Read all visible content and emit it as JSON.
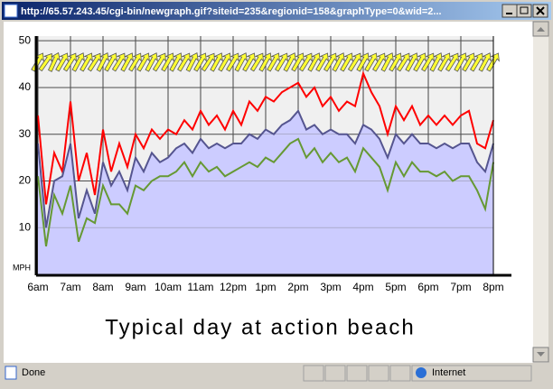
{
  "window": {
    "title": "http://65.57.243.45/cgi-bin/newgraph.gif?siteid=235&regionid=158&graphType=0&wid=2..."
  },
  "chart_data": {
    "type": "line",
    "caption": "Typical day at action beach",
    "y_label": "MPH",
    "x": [
      6,
      6.25,
      6.5,
      6.75,
      7,
      7.25,
      7.5,
      7.75,
      8,
      8.25,
      8.5,
      8.75,
      9,
      9.25,
      9.5,
      9.75,
      10,
      10.25,
      10.5,
      10.75,
      11,
      11.25,
      11.5,
      11.75,
      12,
      12.25,
      12.5,
      12.75,
      13,
      13.25,
      13.5,
      13.75,
      14,
      14.25,
      14.5,
      14.75,
      15,
      15.25,
      15.5,
      15.75,
      16,
      16.25,
      16.5,
      16.75,
      17,
      17.25,
      17.5,
      17.75,
      18,
      18.25,
      18.5,
      18.75,
      19,
      19.25,
      19.5,
      19.75,
      20
    ],
    "series": [
      {
        "color": "#ff0000",
        "values": [
          34,
          15,
          26,
          22,
          37,
          20,
          26,
          17,
          31,
          22,
          28,
          23,
          30,
          27,
          31,
          29,
          31,
          30,
          33,
          31,
          35,
          32,
          34,
          31,
          35,
          32,
          37,
          35,
          38,
          37,
          39,
          40,
          41,
          38,
          40,
          36,
          38,
          35,
          37,
          36,
          43,
          39,
          36,
          30,
          36,
          33,
          36,
          32,
          34,
          32,
          34,
          32,
          34,
          35,
          28,
          27,
          33
        ]
      },
      {
        "color": "#55558f",
        "fill": "#ccccff",
        "values": [
          28,
          10,
          20,
          21,
          28,
          12,
          18,
          13,
          24,
          19,
          22,
          18,
          25,
          22,
          26,
          24,
          25,
          27,
          28,
          26,
          29,
          27,
          28,
          27,
          28,
          28,
          30,
          29,
          31,
          30,
          32,
          33,
          35,
          31,
          32,
          30,
          31,
          30,
          30,
          28,
          32,
          31,
          29,
          25,
          30,
          28,
          30,
          28,
          28,
          27,
          28,
          27,
          28,
          28,
          24,
          22,
          28
        ]
      },
      {
        "color": "#669933",
        "values": [
          21,
          6,
          17,
          13,
          19,
          7,
          12,
          11,
          19,
          15,
          15,
          13,
          19,
          18,
          20,
          21,
          21,
          22,
          24,
          21,
          24,
          22,
          23,
          21,
          22,
          23,
          24,
          23,
          25,
          24,
          26,
          28,
          29,
          25,
          27,
          24,
          26,
          24,
          25,
          22,
          27,
          25,
          23,
          18,
          24,
          21,
          24,
          22,
          22,
          21,
          22,
          20,
          21,
          21,
          18,
          14,
          24
        ]
      }
    ],
    "direction": [
      60,
      55,
      65,
      60,
      58,
      62,
      60,
      57,
      63,
      60,
      58,
      61,
      59,
      60,
      62,
      58,
      60,
      61,
      59,
      63,
      60,
      57,
      61,
      60,
      59,
      62,
      60,
      58,
      61,
      60,
      59,
      62,
      60,
      58,
      61,
      60,
      59,
      62,
      60,
      58,
      61,
      60,
      59,
      62,
      60,
      58,
      61,
      60,
      59,
      62,
      60,
      58,
      61,
      60,
      59,
      62,
      60
    ],
    "direction_level": 45.5,
    "xlim": [
      6,
      20
    ],
    "ylim": [
      0,
      51
    ],
    "yticks": [
      10,
      20,
      30,
      40,
      50
    ],
    "xticks": [
      {
        "value": 6,
        "label": "6am"
      },
      {
        "value": 7,
        "label": "7am"
      },
      {
        "value": 8,
        "label": "8am"
      },
      {
        "value": 9,
        "label": "9am"
      },
      {
        "value": 10,
        "label": "10am"
      },
      {
        "value": 11,
        "label": "11am"
      },
      {
        "value": 12,
        "label": "12pm"
      },
      {
        "value": 13,
        "label": "1pm"
      },
      {
        "value": 14,
        "label": "2pm"
      },
      {
        "value": 15,
        "label": "3pm"
      },
      {
        "value": 16,
        "label": "4pm"
      },
      {
        "value": 17,
        "label": "5pm"
      },
      {
        "value": 18,
        "label": "6pm"
      },
      {
        "value": 19,
        "label": "7pm"
      },
      {
        "value": 20,
        "label": "8pm"
      }
    ],
    "grid": true
  },
  "status_bar": {
    "status": "Done",
    "zone": "Internet"
  }
}
